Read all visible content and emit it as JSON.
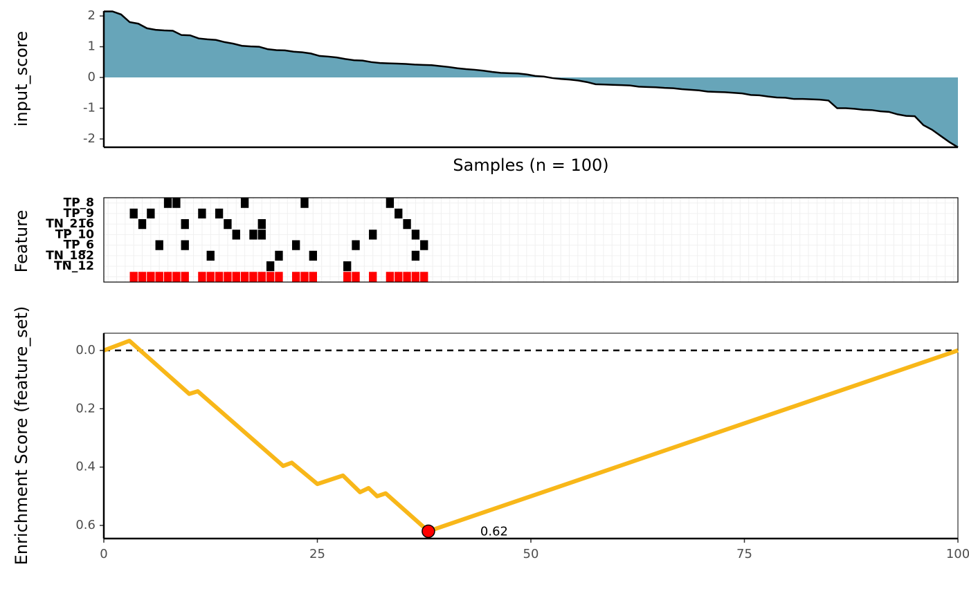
{
  "chart_data": [
    {
      "type": "area",
      "y_label": "input_score",
      "x_label": "Samples (n = 100)",
      "color": "#67a5b9",
      "values": [
        2.15,
        2.15,
        2.05,
        1.8,
        1.75,
        1.6,
        1.55,
        1.53,
        1.52,
        1.38,
        1.37,
        1.27,
        1.24,
        1.22,
        1.15,
        1.1,
        1.03,
        1.01,
        1.0,
        0.92,
        0.89,
        0.88,
        0.84,
        0.82,
        0.78,
        0.7,
        0.68,
        0.65,
        0.6,
        0.56,
        0.55,
        0.5,
        0.47,
        0.46,
        0.45,
        0.44,
        0.42,
        0.41,
        0.4,
        0.37,
        0.34,
        0.3,
        0.27,
        0.25,
        0.22,
        0.18,
        0.15,
        0.14,
        0.13,
        0.1,
        0.05,
        0.03,
        -0.02,
        -0.05,
        -0.07,
        -0.1,
        -0.15,
        -0.22,
        -0.23,
        -0.24,
        -0.25,
        -0.26,
        -0.3,
        -0.31,
        -0.32,
        -0.34,
        -0.35,
        -0.38,
        -0.4,
        -0.42,
        -0.46,
        -0.47,
        -0.48,
        -0.5,
        -0.52,
        -0.57,
        -0.58,
        -0.62,
        -0.65,
        -0.66,
        -0.7,
        -0.7,
        -0.71,
        -0.72,
        -0.75,
        -1.0,
        -1.0,
        -1.02,
        -1.05,
        -1.06,
        -1.1,
        -1.12,
        -1.2,
        -1.25,
        -1.26,
        -1.55,
        -1.7,
        -1.9,
        -2.1,
        -2.27
      ],
      "xlim": [
        1,
        100
      ],
      "ylim": [
        -2.27,
        2.16
      ],
      "yticks": [
        -2,
        -1,
        0,
        1,
        2
      ]
    },
    {
      "type": "tile",
      "y_label": "Feature",
      "xlim": [
        0.5,
        100.5
      ],
      "rows": [
        {
          "name": "TP_8",
          "color": "#000000",
          "samples": [
            8,
            9,
            17,
            24,
            34
          ]
        },
        {
          "name": "TP_9",
          "color": "#000000",
          "samples": [
            4,
            6,
            12,
            14,
            35
          ]
        },
        {
          "name": "TN_216",
          "color": "#000000",
          "samples": [
            5,
            10,
            15,
            19,
            36
          ]
        },
        {
          "name": "TP_10",
          "color": "#000000",
          "samples": [
            16,
            18,
            19,
            32,
            37
          ]
        },
        {
          "name": "TP_6",
          "color": "#000000",
          "samples": [
            7,
            10,
            23,
            30,
            38
          ]
        },
        {
          "name": "TN_182",
          "color": "#000000",
          "samples": [
            13,
            21,
            25,
            37
          ]
        },
        {
          "name": "TN_12",
          "color": "#000000",
          "samples": [
            20,
            29
          ]
        },
        {
          "name": null,
          "color": "#ff0000",
          "samples": [
            4,
            5,
            6,
            7,
            8,
            9,
            10,
            12,
            13,
            14,
            15,
            16,
            17,
            18,
            19,
            20,
            21,
            23,
            24,
            25,
            29,
            30,
            32,
            34,
            35,
            36,
            37,
            38
          ]
        }
      ]
    },
    {
      "type": "line",
      "y_label": "Enrichment Score (feature_set)",
      "color": "#f8b719",
      "x": [
        0,
        3,
        10,
        11,
        21,
        22,
        25,
        28,
        30,
        31,
        32,
        33,
        38,
        100
      ],
      "values": [
        0,
        -0.033,
        0.149,
        0.14,
        0.396,
        0.385,
        0.458,
        0.429,
        0.486,
        0.472,
        0.5,
        0.49,
        0.62,
        0
      ],
      "xlim": [
        0,
        100
      ],
      "xticks": [
        0,
        25,
        50,
        75,
        100
      ],
      "ylim": [
        -0.059,
        0.645
      ],
      "yticks": [
        {
          "value": 0,
          "label": "0.0"
        },
        0.2,
        0.4,
        0.6
      ],
      "y_reversed": true,
      "hline": 0,
      "point": {
        "x": 38,
        "value": 0.62,
        "color": "#ff0000"
      }
    }
  ]
}
